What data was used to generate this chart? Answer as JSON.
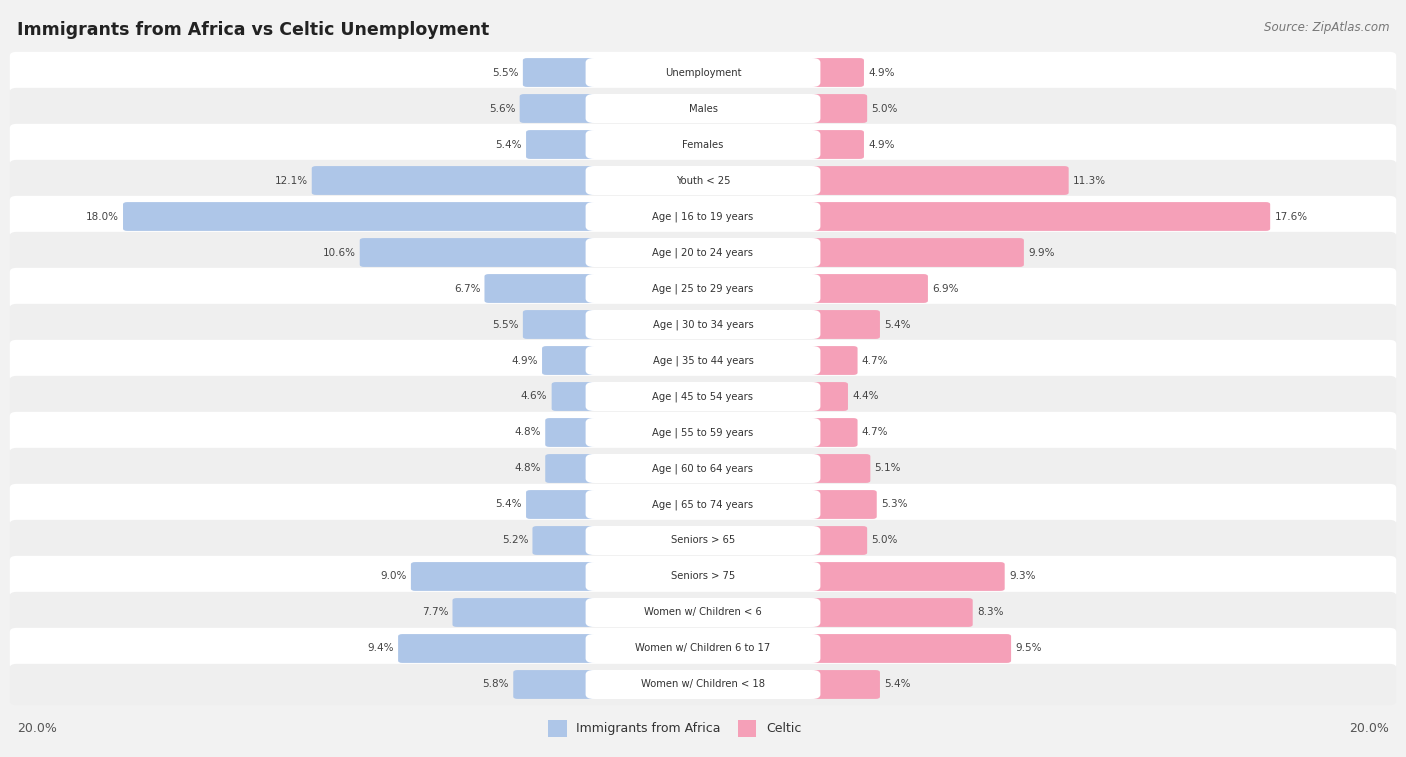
{
  "title": "Immigrants from Africa vs Celtic Unemployment",
  "source": "Source: ZipAtlas.com",
  "categories": [
    "Unemployment",
    "Males",
    "Females",
    "Youth < 25",
    "Age | 16 to 19 years",
    "Age | 20 to 24 years",
    "Age | 25 to 29 years",
    "Age | 30 to 34 years",
    "Age | 35 to 44 years",
    "Age | 45 to 54 years",
    "Age | 55 to 59 years",
    "Age | 60 to 64 years",
    "Age | 65 to 74 years",
    "Seniors > 65",
    "Seniors > 75",
    "Women w/ Children < 6",
    "Women w/ Children 6 to 17",
    "Women w/ Children < 18"
  ],
  "africa_values": [
    5.5,
    5.6,
    5.4,
    12.1,
    18.0,
    10.6,
    6.7,
    5.5,
    4.9,
    4.6,
    4.8,
    4.8,
    5.4,
    5.2,
    9.0,
    7.7,
    9.4,
    5.8
  ],
  "celtic_values": [
    4.9,
    5.0,
    4.9,
    11.3,
    17.6,
    9.9,
    6.9,
    5.4,
    4.7,
    4.4,
    4.7,
    5.1,
    5.3,
    5.0,
    9.3,
    8.3,
    9.5,
    5.4
  ],
  "africa_color": "#aec6e8",
  "celtic_color": "#f5a0b8",
  "max_val": 20.0,
  "legend_africa": "Immigrants from Africa",
  "legend_celtic": "Celtic",
  "row_colors": [
    "#ffffff",
    "#efefef"
  ]
}
